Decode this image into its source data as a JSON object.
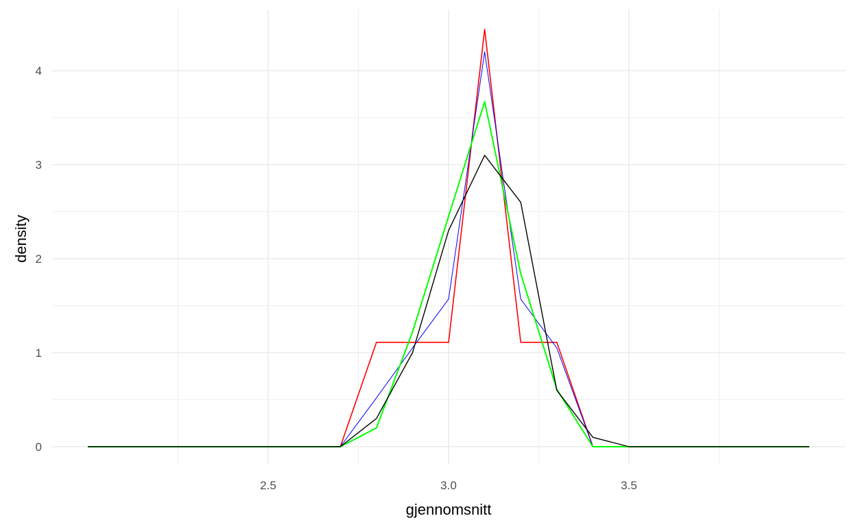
{
  "chart_data": {
    "type": "line",
    "xlabel": "gjennomsnitt",
    "ylabel": "density",
    "xlim": [
      2.0,
      4.0
    ],
    "ylim": [
      0,
      4.45
    ],
    "x_ticks": [
      2.5,
      3.0,
      3.5
    ],
    "x_tick_labels": [
      "2.5",
      "3.0",
      "3.5"
    ],
    "x_minor_ticks": [
      2.25,
      2.75,
      3.25,
      3.75
    ],
    "y_ticks": [
      0,
      1,
      2,
      3,
      4
    ],
    "y_tick_labels": [
      "0",
      "1",
      "2",
      "3",
      "4"
    ],
    "y_minor_ticks": [
      0.5,
      1.5,
      2.5,
      3.5
    ],
    "grid": true,
    "legend": "none",
    "background": "#ffffff",
    "grid_color": "#ebebeb",
    "series": [
      {
        "color": "#ff0000",
        "x": [
          2.0,
          2.7,
          2.8,
          3.0,
          3.1,
          3.2,
          3.3,
          3.4,
          3.5,
          4.0
        ],
        "y": [
          0,
          0,
          1.11,
          1.11,
          4.44,
          1.11,
          1.11,
          0,
          0,
          0
        ]
      },
      {
        "color": "#0000ff",
        "x": [
          2.0,
          2.7,
          2.8,
          2.9,
          3.0,
          3.1,
          3.2,
          3.3,
          3.4,
          3.5,
          4.0
        ],
        "y": [
          0,
          0,
          0.52,
          1.05,
          1.57,
          4.2,
          1.57,
          1.05,
          0,
          0,
          0
        ]
      },
      {
        "color": "#00ff00",
        "x": [
          2.0,
          2.7,
          2.8,
          2.9,
          3.0,
          3.1,
          3.2,
          3.3,
          3.4,
          3.5,
          4.0
        ],
        "y": [
          0,
          0,
          0.2,
          1.22,
          2.45,
          3.67,
          1.84,
          0.61,
          0,
          0,
          0
        ]
      },
      {
        "color": "#000000",
        "x": [
          2.0,
          2.7,
          2.8,
          2.9,
          3.0,
          3.1,
          3.2,
          3.3,
          3.4,
          3.5,
          4.0
        ],
        "y": [
          0,
          0,
          0.3,
          1.0,
          2.3,
          3.1,
          2.6,
          0.6,
          0.1,
          0,
          0
        ]
      }
    ]
  }
}
